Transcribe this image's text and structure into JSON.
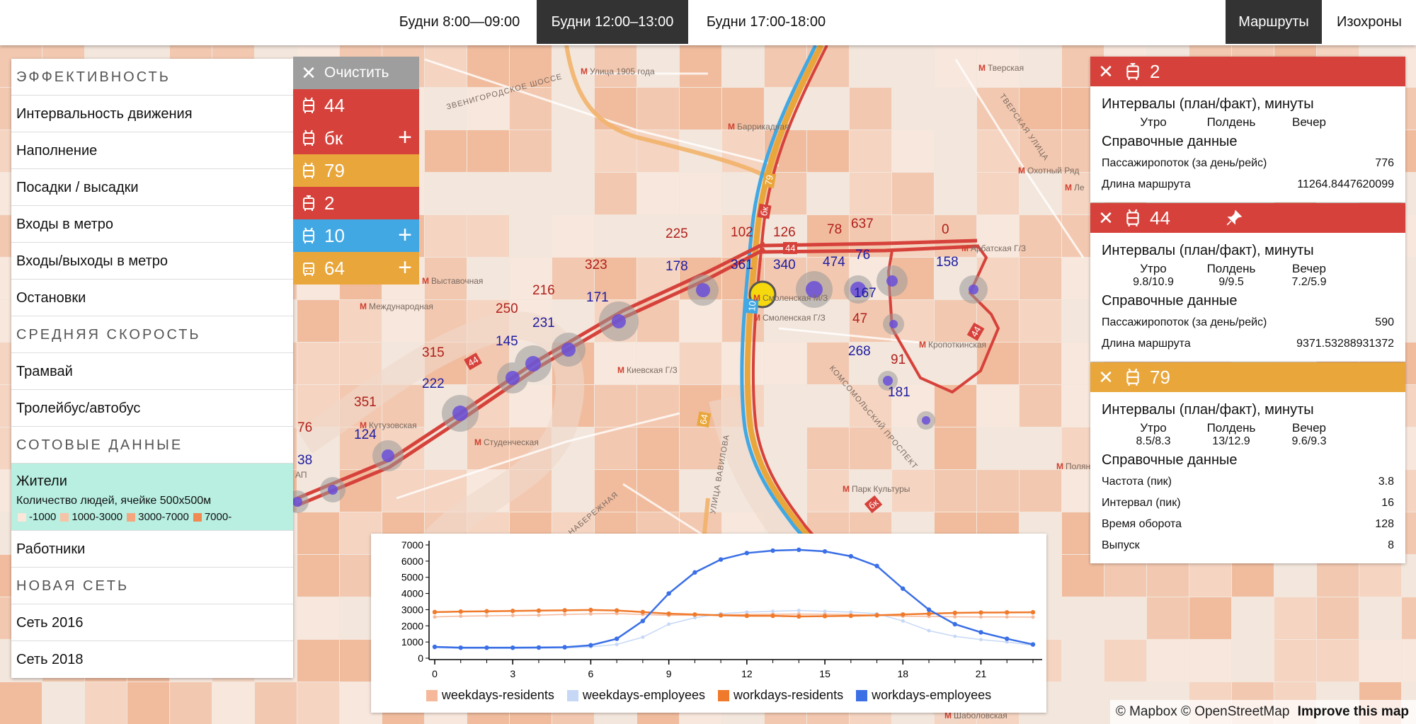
{
  "topbar": {
    "periods": [
      "Будни 8:00—09:00",
      "Будни 12:00–13:00",
      "Будни 17:00-18:00"
    ],
    "active_period": "Будни 12:00–13:00",
    "modes": [
      "Маршруты",
      "Изохроны"
    ],
    "active_mode": "Маршруты"
  },
  "left_panel": {
    "sections": [
      {
        "title": "ЭФФЕКТИВНОСТЬ",
        "items": [
          "Интервальность движения",
          "Наполнение",
          "Посадки / высадки",
          "Входы в метро",
          "Входы/выходы в метро",
          "Остановки"
        ]
      },
      {
        "title": "СРЕДНЯЯ СКОРОСТЬ",
        "items": [
          "Трамвай",
          "Тролейбус/автобус"
        ]
      },
      {
        "title": "СОТОВЫЕ ДАННЫЕ",
        "items": [
          "Жители",
          "Работники"
        ]
      },
      {
        "title": "НОВАЯ СЕТЬ",
        "items": [
          "Сеть 2016",
          "Сеть 2018"
        ]
      }
    ],
    "active_item": {
      "label": "Жители",
      "subtitle": "Количество людей, ячейке 500х500м",
      "legend": [
        {
          "label": "-1000",
          "color": "#fbe6da"
        },
        {
          "label": "1000-3000",
          "color": "#f7c3a6"
        },
        {
          "label": "3000-7000",
          "color": "#f4a67f"
        },
        {
          "label": "7000-",
          "color": "#f08a52"
        }
      ]
    }
  },
  "route_list": {
    "clear_label": "Очистить",
    "routes": [
      {
        "number": "44",
        "type": "trolleybus",
        "color": "#d6423b",
        "has_plus": false
      },
      {
        "number": "бк",
        "type": "trolleybus",
        "color": "#d6423b",
        "has_plus": true
      },
      {
        "number": "79",
        "type": "trolleybus",
        "color": "#e9a63a",
        "has_plus": false
      },
      {
        "number": "2",
        "type": "tram",
        "color": "#d6423b",
        "has_plus": false
      },
      {
        "number": "10",
        "type": "trolleybus",
        "color": "#41a8e3",
        "has_plus": true
      },
      {
        "number": "64",
        "type": "bus",
        "color": "#e9a63a",
        "has_plus": true
      }
    ]
  },
  "route_cards": [
    {
      "number": "2",
      "type": "tram",
      "color": "#d6423b",
      "has_pin": false,
      "intervals_title": "Интервалы (план/факт), минуты",
      "columns": [
        "Утро",
        "Полдень",
        "Вечер"
      ],
      "values": [],
      "reference_title": "Справочные данные",
      "rows": [
        {
          "label": "Пассажиропоток (за день/рейс)",
          "value": "776"
        },
        {
          "label": "Длина маршрута",
          "value": "11264.8447620099"
        }
      ]
    },
    {
      "number": "44",
      "type": "trolleybus",
      "color": "#d6423b",
      "has_pin": true,
      "intervals_title": "Интервалы (план/факт), минуты",
      "columns": [
        "Утро",
        "Полдень",
        "Вечер"
      ],
      "values": [
        "9.8/10.9",
        "9/9.5",
        "7.2/5.9"
      ],
      "reference_title": "Справочные данные",
      "rows": [
        {
          "label": "Пассажиропоток (за день/рейс)",
          "value": "590"
        },
        {
          "label": "Длина маршрута",
          "value": "9371.53288931372"
        }
      ]
    },
    {
      "number": "79",
      "type": "trolleybus",
      "color": "#e9a63a",
      "has_pin": false,
      "intervals_title": "Интервалы (план/факт), минуты",
      "columns": [
        "Утро",
        "Полдень",
        "Вечер"
      ],
      "values": [
        "8.5/8.3",
        "13/12.9",
        "9.6/9.3"
      ],
      "reference_title": "Справочные данные",
      "rows": [
        {
          "label": "Частота (пик)",
          "value": "3.8"
        },
        {
          "label": "Интервал (пик)",
          "value": "16"
        },
        {
          "label": "Время оборота",
          "value": "128"
        },
        {
          "label": "Выпуск",
          "value": "8"
        }
      ]
    }
  ],
  "map": {
    "places": [
      {
        "name": "Улица 1905 года",
        "metro": true
      },
      {
        "name": "Баррикадная",
        "metro": true
      },
      {
        "name": "Тверская",
        "metro": true
      },
      {
        "name": "Охотный Ряд",
        "metro": true
      },
      {
        "name": "Ле",
        "metro": true
      },
      {
        "name": "Арбатская Г/З",
        "metro": true
      },
      {
        "name": "Выставочная",
        "metro": true
      },
      {
        "name": "Международная",
        "metro": true
      },
      {
        "name": "Смоленская М/З",
        "metro": true
      },
      {
        "name": "Смоленская Г/З",
        "metro": true
      },
      {
        "name": "Кропоткинская",
        "metro": true
      },
      {
        "name": "Киевская Г/З",
        "metro": true
      },
      {
        "name": "Кутузовская",
        "metro": true
      },
      {
        "name": "Студенческая",
        "metro": true
      },
      {
        "name": "Полянка",
        "metro": true
      },
      {
        "name": "Парк Культуры",
        "metro": true
      },
      {
        "name": "Шаболовская",
        "metro": true
      },
      {
        "name": "ЗВЕНИГОРОДСКОЕ ШОССЕ",
        "metro": false
      },
      {
        "name": "ТВЕРСКАЯ УЛИЦА",
        "metro": false
      },
      {
        "name": "КОМСОМОЛЬСКИЙ ПРОСПЕКТ",
        "metro": false
      },
      {
        "name": "БЕРЕЖКОВСКАЯ НАБЕРЕЖНАЯ",
        "metro": false
      },
      {
        "name": "УЛИЦА ВАВИЛОВА",
        "metro": false
      },
      {
        "name": "АП",
        "metro": false
      }
    ],
    "route_badges": [
      "79",
      "бк",
      "44",
      "44",
      "44",
      "10",
      "64",
      "бк"
    ],
    "stops": [
      {
        "boardings": "76",
        "alightings": "38"
      },
      {
        "boardings": "351",
        "alightings": "124"
      },
      {
        "boardings": "315",
        "alightings": "222"
      },
      {
        "boardings": "250",
        "alightings": "145"
      },
      {
        "boardings": "216",
        "alightings": "231"
      },
      {
        "boardings": "323",
        "alightings": "171"
      },
      {
        "boardings": "225",
        "alightings": "178"
      },
      {
        "boardings": "102",
        "alightings": "361"
      },
      {
        "boardings": "126",
        "alightings": "340"
      },
      {
        "boardings": "78",
        "alightings": "474"
      },
      {
        "boardings": "637",
        "alightings": "76"
      },
      {
        "boardings": "0",
        "alightings": "158"
      },
      {
        "boardings": "47",
        "alightings": "167"
      },
      {
        "boardings": "91",
        "alightings": "268"
      },
      {
        "boardings": "",
        "alightings": "181"
      }
    ]
  },
  "attribution": {
    "text": "© Mapbox © OpenStreetMap",
    "link": "Improve this map"
  },
  "chart_data": {
    "type": "line",
    "x": [
      0,
      1,
      2,
      3,
      4,
      5,
      6,
      7,
      8,
      9,
      10,
      11,
      12,
      13,
      14,
      15,
      16,
      17,
      18,
      19,
      20,
      21,
      22,
      23
    ],
    "xticks": [
      0,
      3,
      6,
      9,
      12,
      15,
      18,
      21
    ],
    "ylim": [
      0,
      7000
    ],
    "yticks": [
      0,
      1000,
      2000,
      3000,
      4000,
      5000,
      6000,
      7000
    ],
    "series": [
      {
        "name": "weekdays-residents",
        "color": "#f5b89a",
        "values": [
          2550,
          2600,
          2620,
          2640,
          2660,
          2700,
          2740,
          2760,
          2700,
          2650,
          2650,
          2680,
          2700,
          2720,
          2730,
          2720,
          2700,
          2650,
          2600,
          2580,
          2560,
          2550,
          2550,
          2540
        ]
      },
      {
        "name": "weekdays-employees",
        "color": "#c6d8f5",
        "values": [
          650,
          600,
          600,
          600,
          610,
          630,
          700,
          850,
          1300,
          2100,
          2500,
          2750,
          2850,
          2900,
          2950,
          2900,
          2850,
          2750,
          2300,
          1700,
          1350,
          1150,
          1000,
          800
        ]
      },
      {
        "name": "workdays-residents",
        "color": "#f07a2c",
        "values": [
          2850,
          2880,
          2900,
          2920,
          2940,
          2960,
          2980,
          2950,
          2850,
          2750,
          2700,
          2650,
          2620,
          2620,
          2580,
          2600,
          2620,
          2650,
          2700,
          2750,
          2800,
          2820,
          2830,
          2840
        ]
      },
      {
        "name": "workdays-employees",
        "color": "#3a6fe6",
        "values": [
          700,
          650,
          650,
          650,
          660,
          680,
          800,
          1200,
          2300,
          4000,
          5300,
          6100,
          6500,
          6650,
          6700,
          6600,
          6300,
          5700,
          4300,
          3000,
          2100,
          1600,
          1200,
          850
        ]
      }
    ]
  }
}
